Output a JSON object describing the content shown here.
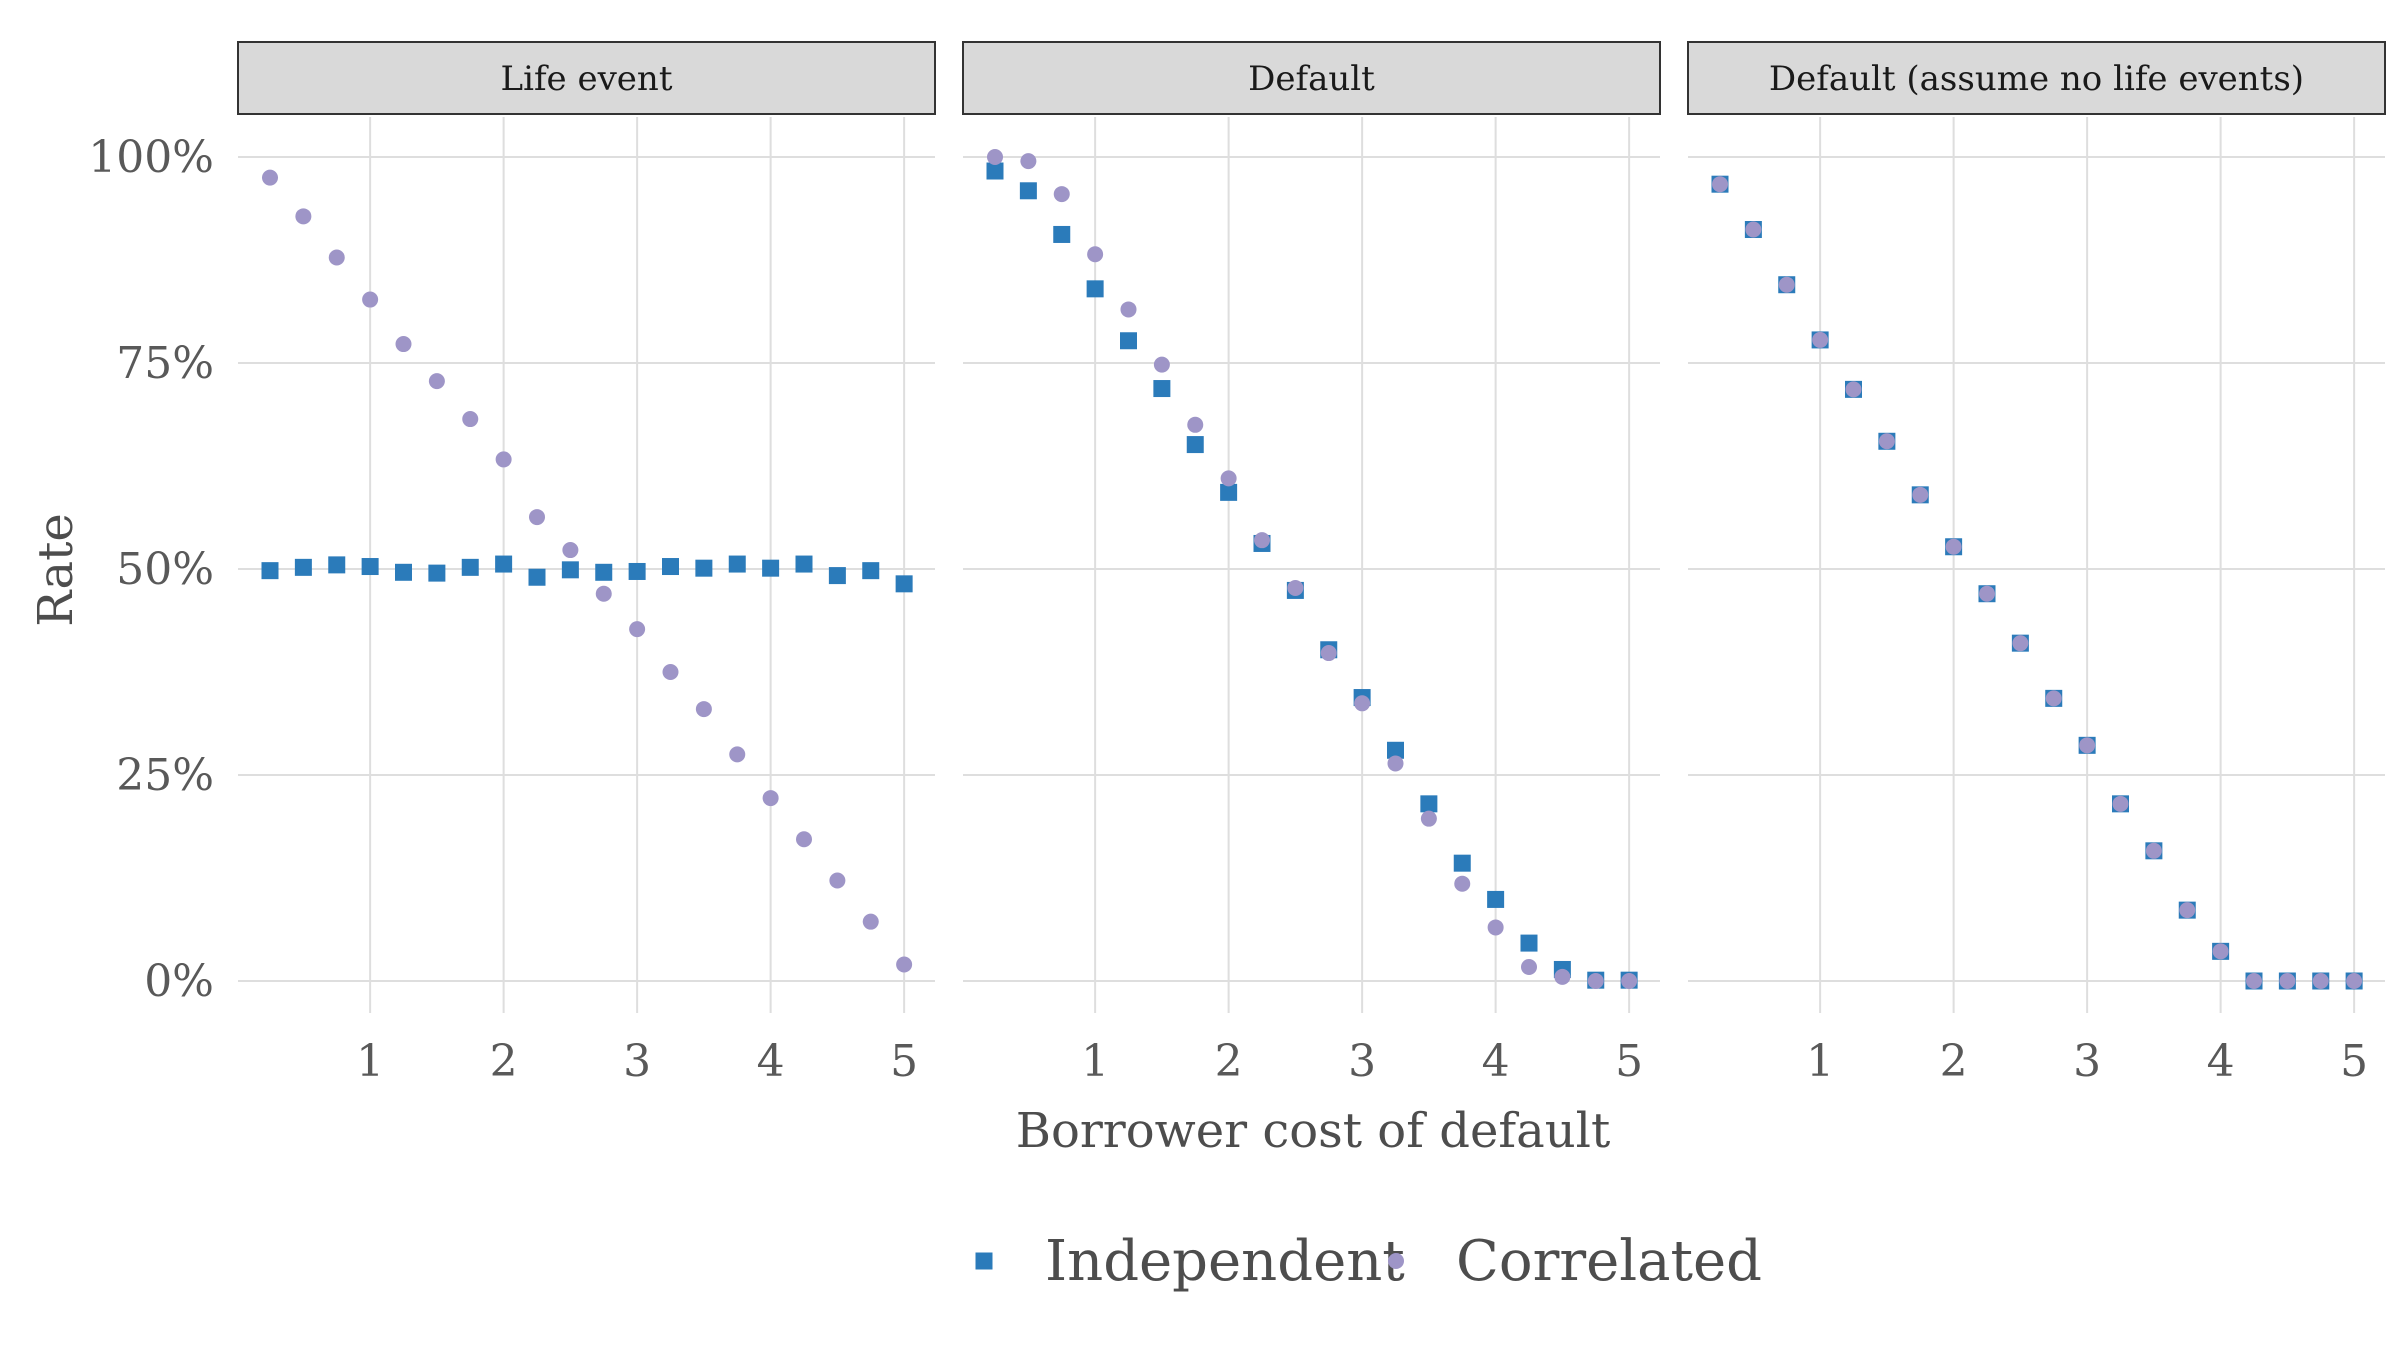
{
  "chart_data": {
    "type": "scatter",
    "xlabel": "Borrower cost of default",
    "ylabel": "Rate",
    "xlim": [
      0.0,
      5.12
    ],
    "ylim": [
      -0.05,
      1.05
    ],
    "x_ticks": [
      1,
      2,
      3,
      4,
      5
    ],
    "x_tick_labels": [
      "1",
      "2",
      "3",
      "4",
      "5"
    ],
    "y_ticks": [
      0,
      0.25,
      0.5,
      0.75,
      1.0
    ],
    "y_tick_labels": [
      "0%",
      "25%",
      "50%",
      "75%",
      "100%"
    ],
    "grid": true,
    "legend_position": "bottom",
    "colors": {
      "Independent": "#2b7bba",
      "Correlated": "#9e95c7"
    },
    "x": [
      0.25,
      0.5,
      0.75,
      1.0,
      1.25,
      1.5,
      1.75,
      2.0,
      2.25,
      2.5,
      2.75,
      3.0,
      3.25,
      3.5,
      3.75,
      4.0,
      4.25,
      4.5,
      4.75,
      5.0
    ],
    "panels": [
      {
        "title": "Life event",
        "series": [
          {
            "name": "Independent",
            "marker": "square",
            "values": [
              0.498,
              0.502,
              0.505,
              0.503,
              0.496,
              0.495,
              0.502,
              0.506,
              0.49,
              0.499,
              0.496,
              0.497,
              0.503,
              0.501,
              0.506,
              0.501,
              0.506,
              0.492,
              0.498,
              0.482
            ]
          },
          {
            "name": "Correlated",
            "marker": "circle",
            "values": [
              0.975,
              0.928,
              0.878,
              0.827,
              0.773,
              0.728,
              0.682,
              0.633,
              0.563,
              0.523,
              0.47,
              0.427,
              0.375,
              0.33,
              0.275,
              0.222,
              0.172,
              0.122,
              0.072,
              0.02
            ]
          }
        ]
      },
      {
        "title": "Default",
        "series": [
          {
            "name": "Independent",
            "marker": "square",
            "values": [
              0.983,
              0.959,
              0.906,
              0.84,
              0.777,
              0.719,
              0.651,
              0.593,
              0.531,
              0.474,
              0.402,
              0.344,
              0.28,
              0.215,
              0.143,
              0.099,
              0.046,
              0.014,
              0.001,
              0.001
            ]
          },
          {
            "name": "Correlated",
            "marker": "circle",
            "values": [
              1.0,
              0.995,
              0.955,
              0.882,
              0.815,
              0.748,
              0.675,
              0.61,
              0.535,
              0.477,
              0.398,
              0.337,
              0.264,
              0.197,
              0.118,
              0.065,
              0.017,
              0.005,
              0.0,
              0.0
            ]
          }
        ]
      },
      {
        "title": "Default (assume no life events)",
        "series": [
          {
            "name": "Independent",
            "marker": "square",
            "values": [
              0.967,
              0.912,
              0.845,
              0.778,
              0.718,
              0.655,
              0.59,
              0.527,
              0.47,
              0.41,
              0.343,
              0.286,
              0.215,
              0.158,
              0.086,
              0.036,
              0.0,
              0.0,
              0.0,
              0.0
            ]
          },
          {
            "name": "Correlated",
            "marker": "circle",
            "values": [
              0.967,
              0.912,
              0.845,
              0.778,
              0.718,
              0.655,
              0.59,
              0.527,
              0.47,
              0.41,
              0.343,
              0.286,
              0.215,
              0.158,
              0.086,
              0.036,
              0.0,
              0.0,
              0.0,
              0.0
            ]
          }
        ]
      }
    ],
    "legend": [
      {
        "name": "Independent",
        "marker": "square"
      },
      {
        "name": "Correlated",
        "marker": "circle"
      }
    ]
  }
}
